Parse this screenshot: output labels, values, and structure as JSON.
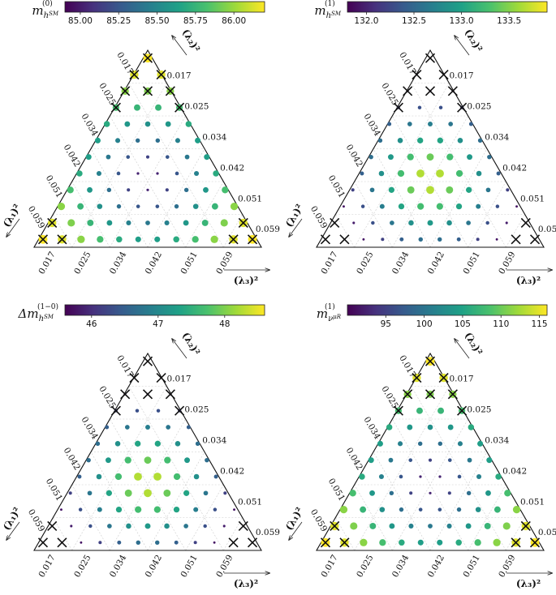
{
  "figure": {
    "grid_size": 12,
    "axis_labels": {
      "lambda1": "(λ₁)²",
      "lambda2": "(λ₂)²",
      "lambda3": "(λ₃)²"
    },
    "ticks": [
      "0.017",
      "0.025",
      "0.034",
      "0.042",
      "0.051",
      "0.059"
    ]
  },
  "colormap": [
    "#440154",
    "#46327e",
    "#365c8d",
    "#277f8e",
    "#1fa187",
    "#4ac16d",
    "#a0da39",
    "#fde725"
  ],
  "chart_data": [
    {
      "type": "ternary-scatter",
      "panel": "top-left",
      "colorbar_label": "m_{h^SM}^{(0)}",
      "label_main": "m",
      "label_sub": "h",
      "label_subsub": "SM",
      "label_sup": "(0)",
      "range": [
        84.9,
        86.2
      ],
      "cbar_ticks": [
        "85.00",
        "85.25",
        "85.50",
        "85.75",
        "86.00"
      ],
      "cbar_tick_values": [
        85.0,
        85.25,
        85.5,
        85.75,
        86.0
      ],
      "pattern": "ring-high",
      "crosses": [
        [
          0,
          0
        ],
        [
          1,
          0
        ],
        [
          1,
          1
        ],
        [
          2,
          0
        ],
        [
          2,
          1
        ],
        [
          2,
          2
        ],
        [
          3,
          0
        ],
        [
          3,
          3
        ],
        [
          11,
          0
        ],
        [
          11,
          1
        ],
        [
          11,
          10
        ],
        [
          11,
          11
        ],
        [
          10,
          0
        ],
        [
          10,
          10
        ]
      ]
    },
    {
      "type": "ternary-scatter",
      "panel": "top-right",
      "colorbar_label": "m_{h^SM}^{(1)}",
      "label_main": "m",
      "label_sub": "h",
      "label_subsub": "SM",
      "label_sup": "(1)",
      "range": [
        131.8,
        133.9
      ],
      "cbar_ticks": [
        "132.0",
        "132.5",
        "133.0",
        "133.5"
      ],
      "cbar_tick_values": [
        132.0,
        132.5,
        133.0,
        133.5
      ],
      "pattern": "center-high",
      "crosses": [
        [
          0,
          0
        ],
        [
          1,
          0
        ],
        [
          1,
          1
        ],
        [
          2,
          0
        ],
        [
          2,
          1
        ],
        [
          2,
          2
        ],
        [
          3,
          0
        ],
        [
          3,
          3
        ],
        [
          11,
          0
        ],
        [
          11,
          1
        ],
        [
          11,
          10
        ],
        [
          11,
          11
        ],
        [
          10,
          0
        ],
        [
          10,
          10
        ]
      ]
    },
    {
      "type": "ternary-scatter",
      "panel": "bottom-left",
      "colorbar_label": "Δm_{h^SM}^{(1-0)}",
      "label_main": "Δm",
      "label_sub": "h",
      "label_subsub": "SM",
      "label_sup": "(1−0)",
      "range": [
        45.6,
        48.6
      ],
      "cbar_ticks": [
        "46",
        "47",
        "48"
      ],
      "cbar_tick_values": [
        46,
        47,
        48
      ],
      "pattern": "center-high",
      "crosses": [
        [
          0,
          0
        ],
        [
          1,
          0
        ],
        [
          1,
          1
        ],
        [
          2,
          0
        ],
        [
          2,
          1
        ],
        [
          2,
          2
        ],
        [
          3,
          0
        ],
        [
          3,
          3
        ],
        [
          11,
          0
        ],
        [
          11,
          1
        ],
        [
          11,
          10
        ],
        [
          11,
          11
        ],
        [
          10,
          0
        ],
        [
          10,
          10
        ]
      ]
    },
    {
      "type": "ternary-scatter",
      "panel": "bottom-right",
      "colorbar_label": "m_{ν_μR}^{(1)}",
      "label_main": "m",
      "label_sub": "ν",
      "label_subsub": "μR",
      "label_sup": "(1)",
      "range": [
        90.0,
        116.0
      ],
      "cbar_ticks": [
        "95",
        "100",
        "105",
        "110",
        "115"
      ],
      "cbar_tick_values": [
        95,
        100,
        105,
        110,
        115
      ],
      "pattern": "ring-high",
      "crosses": [
        [
          0,
          0
        ],
        [
          1,
          0
        ],
        [
          1,
          1
        ],
        [
          2,
          0
        ],
        [
          2,
          1
        ],
        [
          2,
          2
        ],
        [
          3,
          0
        ],
        [
          3,
          3
        ],
        [
          11,
          0
        ],
        [
          11,
          1
        ],
        [
          11,
          10
        ],
        [
          11,
          11
        ],
        [
          10,
          0
        ],
        [
          10,
          10
        ]
      ]
    }
  ]
}
